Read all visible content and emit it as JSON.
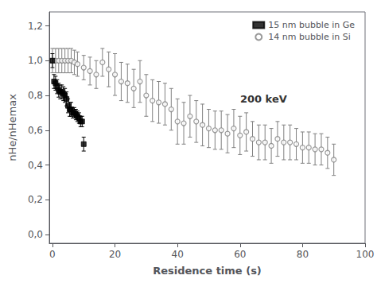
{
  "chart_data": {
    "type": "scatter",
    "xlabel": "Residence time (s)",
    "ylabel": "nHe/nHemax",
    "annotation": "200 keV",
    "xlim": [
      -1,
      100
    ],
    "ylim": [
      -0.05,
      1.28
    ],
    "xticks": [
      0,
      20,
      40,
      60,
      80,
      100
    ],
    "yticks": [
      {
        "value": 0.0,
        "label": "0,0"
      },
      {
        "value": 0.2,
        "label": "0,2"
      },
      {
        "value": 0.4,
        "label": "0,4"
      },
      {
        "value": 0.6,
        "label": "0,6"
      },
      {
        "value": 0.8,
        "label": "0,8"
      },
      {
        "value": 1.0,
        "label": "1,0"
      },
      {
        "value": 1.2,
        "label": "1,2"
      }
    ],
    "grid": false,
    "legend": "upper right",
    "series": [
      {
        "name": "14 nm bubble in Si",
        "color": "gray",
        "marker": "open_circle",
        "x": [
          0.0,
          1.0,
          2.0,
          3.0,
          4.0,
          5.0,
          6.0,
          7.0,
          8.0,
          10.0,
          12.0,
          14.0,
          16.0,
          18.0,
          20.0,
          22.0,
          24.0,
          26.0,
          28.0,
          30.0,
          32.0,
          34.0,
          36.0,
          38.0,
          40.0,
          42.0,
          44.0,
          46.0,
          48.0,
          50.0,
          52.0,
          54.0,
          56.0,
          58.0,
          60.0,
          62.0,
          64.0,
          66.0,
          68.0,
          70.0,
          72.0,
          74.0,
          76.0,
          78.0,
          80.0,
          82.0,
          84.0,
          86.0,
          88.0,
          90.0
        ],
        "values": [
          1.0,
          1.0,
          1.0,
          1.0,
          1.0,
          1.0,
          1.0,
          0.99,
          0.98,
          0.96,
          0.94,
          0.92,
          0.99,
          0.95,
          0.92,
          0.88,
          0.87,
          0.84,
          0.88,
          0.8,
          0.77,
          0.76,
          0.75,
          0.72,
          0.65,
          0.64,
          0.68,
          0.65,
          0.63,
          0.61,
          0.6,
          0.6,
          0.58,
          0.61,
          0.57,
          0.59,
          0.55,
          0.53,
          0.53,
          0.51,
          0.55,
          0.53,
          0.53,
          0.52,
          0.5,
          0.5,
          0.49,
          0.49,
          0.47,
          0.43
        ],
        "yerr": [
          0.07,
          0.07,
          0.07,
          0.07,
          0.07,
          0.07,
          0.07,
          0.07,
          0.07,
          0.07,
          0.08,
          0.08,
          0.08,
          0.1,
          0.12,
          0.11,
          0.11,
          0.11,
          0.12,
          0.12,
          0.12,
          0.12,
          0.12,
          0.12,
          0.13,
          0.12,
          0.12,
          0.12,
          0.12,
          0.11,
          0.11,
          0.11,
          0.11,
          0.11,
          0.11,
          0.11,
          0.1,
          0.1,
          0.1,
          0.1,
          0.1,
          0.1,
          0.1,
          0.09,
          0.09,
          0.09,
          0.09,
          0.09,
          0.09,
          0.09
        ]
      },
      {
        "name": "15 nm bubble in Ge",
        "color": "black",
        "marker": "square",
        "x": [
          0.0,
          0.5,
          1.0,
          1.5,
          2.0,
          2.5,
          3.0,
          3.5,
          4.0,
          4.5,
          5.0,
          5.5,
          6.0,
          6.5,
          7.0,
          7.5,
          8.0,
          8.5,
          9.0,
          9.5,
          10.0
        ],
        "values": [
          1.0,
          0.88,
          0.87,
          0.85,
          0.83,
          0.82,
          0.82,
          0.81,
          0.8,
          0.78,
          0.74,
          0.72,
          0.72,
          0.7,
          0.7,
          0.69,
          0.68,
          0.67,
          0.65,
          0.65,
          0.52
        ],
        "yerr": [
          0.04,
          0.04,
          0.04,
          0.04,
          0.04,
          0.04,
          0.04,
          0.04,
          0.04,
          0.04,
          0.04,
          0.04,
          0.04,
          0.03,
          0.03,
          0.03,
          0.03,
          0.03,
          0.03,
          0.03,
          0.04
        ]
      }
    ]
  }
}
